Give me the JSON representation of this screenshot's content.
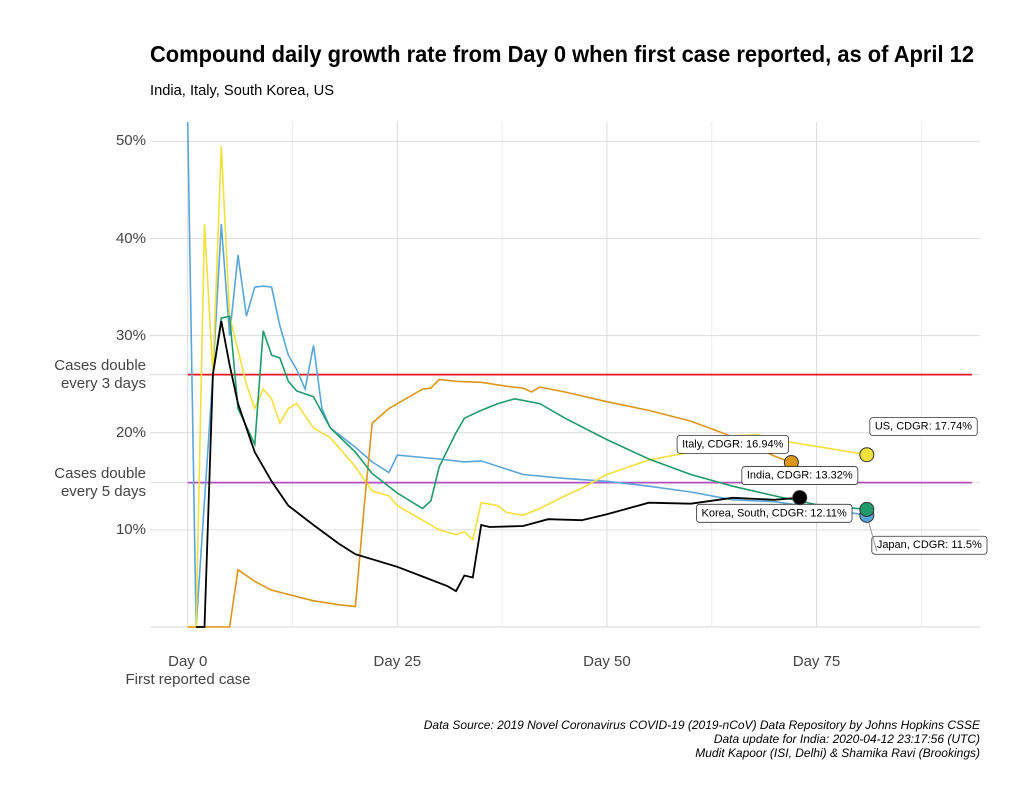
{
  "chart_data": {
    "type": "line",
    "title": "Compound daily growth rate from Day 0 when first case reported, as of April 12",
    "subtitle": "India, Italy, South Korea, US",
    "x_annotation": "First reported case",
    "xlim": [
      -4.5,
      94.5
    ],
    "xticks": [
      {
        "value": 0,
        "label": "Day 0"
      },
      {
        "value": 25,
        "label": "Day 25"
      },
      {
        "value": 50,
        "label": "Day 50"
      },
      {
        "value": 75,
        "label": "Day 75"
      }
    ],
    "xminor": [
      12.5,
      37.5,
      62.5,
      87.5
    ],
    "ylim": [
      0,
      52
    ],
    "yticks": [
      {
        "value": 10,
        "label": "10%"
      },
      {
        "value": 14.87,
        "label": "Cases double every 5 days"
      },
      {
        "value": 20,
        "label": "20%"
      },
      {
        "value": 25.99,
        "label": "Cases double every 3 days"
      },
      {
        "value": 30,
        "label": "30%"
      },
      {
        "value": 40,
        "label": "40%"
      },
      {
        "value": 50,
        "label": "50%"
      }
    ],
    "grid": true,
    "hlines": [
      {
        "value": 25.99,
        "color": "#e8141c"
      },
      {
        "value": 14.87,
        "color": "#b34fc4"
      }
    ],
    "series": [
      {
        "label": "Japan, CDGR: 11.5%",
        "color": "#5aa6d8",
        "x": [
          0,
          1,
          3,
          4,
          5,
          6,
          7,
          8,
          9,
          10,
          11,
          12,
          13,
          14,
          15,
          16,
          17,
          20,
          22,
          24,
          25,
          30,
          33,
          35,
          40,
          45,
          50,
          55,
          60,
          65,
          70,
          75,
          81
        ],
        "values": [
          52,
          0,
          26,
          41.5,
          30,
          38.3,
          32,
          35,
          35.1,
          35,
          31,
          28,
          26.5,
          24.5,
          29,
          22.5,
          20.5,
          18.5,
          17,
          15.9,
          17.7,
          17.3,
          17,
          17.1,
          15.7,
          15.3,
          15,
          14.5,
          13.9,
          13.1,
          12.9,
          12.3,
          11.5
        ]
      },
      {
        "label": "US, CDGR: 17.74%",
        "color": "#f2e03c",
        "x": [
          0,
          1,
          2,
          3,
          4,
          5,
          6,
          7,
          8,
          9,
          10,
          11,
          12,
          13,
          15,
          17,
          20,
          22,
          24,
          25,
          28,
          30,
          32,
          33,
          34,
          35,
          37,
          38,
          40,
          42,
          45,
          47,
          50,
          55,
          60,
          63,
          65,
          68,
          70,
          75,
          81
        ],
        "values": [
          0,
          0,
          41.5,
          26,
          49.5,
          32,
          28.5,
          25,
          22.5,
          24.5,
          23.5,
          21,
          22.5,
          23,
          20.5,
          19.5,
          16.5,
          14,
          13.5,
          12.5,
          11,
          10,
          9.5,
          9.8,
          9,
          12.8,
          12.5,
          11.8,
          11.5,
          12.2,
          13.5,
          14.3,
          15.7,
          17.2,
          18,
          19.3,
          19.7,
          19.8,
          19.3,
          18.6,
          17.74
        ]
      },
      {
        "label": "Italy, CDGR: 16.94%",
        "color": "#dc9618",
        "x": [
          0,
          5,
          6,
          8,
          10,
          15,
          18,
          20,
          21,
          22,
          24,
          26,
          28,
          29,
          30,
          32,
          35,
          38,
          40,
          41,
          42,
          45,
          50,
          55,
          60,
          65,
          70,
          72
        ],
        "values": [
          0,
          0,
          5.9,
          4.7,
          3.8,
          2.7,
          2.3,
          2.1,
          12,
          21,
          22.5,
          23.5,
          24.5,
          24.6,
          25.5,
          25.3,
          25.2,
          24.8,
          24.6,
          24.2,
          24.7,
          24.2,
          23.2,
          22.3,
          21.2,
          19.6,
          17.6,
          16.94
        ]
      },
      {
        "label": "Korea, South, CDGR: 12.11%",
        "color": "#1f9a6a",
        "x": [
          3,
          4,
          5,
          6,
          8,
          9,
          10,
          11,
          12,
          13,
          15,
          17,
          20,
          22,
          25,
          28,
          29,
          30,
          32,
          33,
          35,
          37,
          39,
          42,
          45,
          50,
          55,
          60,
          65,
          70,
          75,
          81
        ],
        "values": [
          26,
          31.8,
          32,
          22.5,
          18.8,
          30.5,
          28,
          27.7,
          25.3,
          24.3,
          23.7,
          20.5,
          18,
          15.8,
          13.8,
          12.2,
          13,
          16.5,
          20,
          21.5,
          22.3,
          23,
          23.5,
          23,
          21.5,
          19.3,
          17.3,
          15.7,
          14.5,
          13.5,
          12.6,
          12.11
        ]
      },
      {
        "label": "India, CDGR: 13.32%",
        "color": "#000000",
        "x": [
          1,
          2,
          3,
          4,
          5,
          6,
          8,
          10,
          12,
          15,
          18,
          20,
          25,
          28,
          31,
          32,
          33,
          34,
          35,
          36,
          40,
          43,
          47,
          50,
          55,
          60,
          65,
          70,
          73
        ],
        "values": [
          0,
          0,
          26,
          31.5,
          27,
          23,
          18,
          15,
          12.5,
          10.5,
          8.6,
          7.5,
          6.2,
          5.2,
          4.2,
          3.7,
          5.3,
          5.1,
          10.5,
          10.3,
          10.4,
          11.1,
          11,
          11.6,
          12.8,
          12.7,
          13.3,
          13.1,
          13.32
        ]
      }
    ],
    "source": [
      "Data Source: 2019 Novel Coronavirus COVID-19 (2019-nCoV) Data Repository by Johns Hopkins CSSE",
      "Data update for India: 2020-04-12 23:17:56 (UTC)",
      "Mudit Kapoor (ISI, Delhi) & Shamika Ravi (Brookings)"
    ]
  }
}
